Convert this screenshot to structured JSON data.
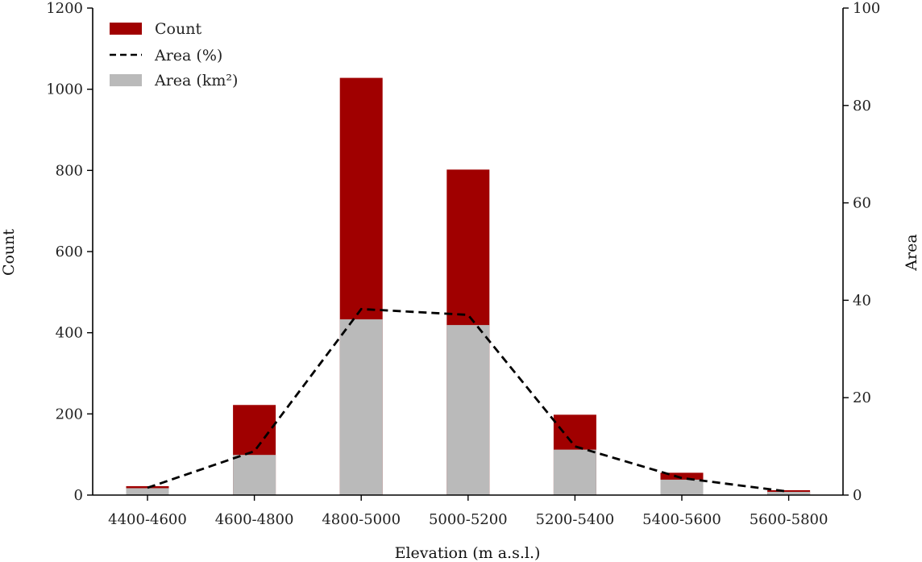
{
  "chart_data": {
    "type": "bar",
    "categories": [
      "4400-4600",
      "4600-4800",
      "4800-5000",
      "5000-5200",
      "5200-5400",
      "5400-5600",
      "5600-5800"
    ],
    "series": [
      {
        "name": "Count",
        "kind": "bar",
        "axis": "left",
        "color": "#a00000",
        "values": [
          22,
          222,
          1028,
          802,
          198,
          55,
          12
        ]
      },
      {
        "name": "Area (km²)",
        "kind": "bar",
        "axis": "left",
        "color": "#bababa",
        "values": [
          17,
          99,
          433,
          419,
          112,
          38,
          8
        ]
      },
      {
        "name": "Area (%)",
        "kind": "line",
        "style": "dashed",
        "axis": "right",
        "color": "#000000",
        "values": [
          1.5,
          9,
          38.2,
          37,
          10,
          3.5,
          0.7
        ]
      }
    ],
    "xlabel": "Elevation (m a.s.l.)",
    "ylabel": "Count",
    "y2label": "Area",
    "ylim": [
      0,
      1200
    ],
    "y2lim": [
      0,
      100
    ],
    "yticks": [
      0,
      200,
      400,
      600,
      800,
      1000,
      1200
    ],
    "y2ticks": [
      0,
      20,
      40,
      60,
      80,
      100
    ],
    "grid": false,
    "legend": {
      "placement": "top-left",
      "entries": [
        {
          "label": "Count",
          "kind": "patch",
          "color": "#a00000"
        },
        {
          "label": "Area (%)",
          "kind": "dashed-line",
          "color": "#000000"
        },
        {
          "label": "Area (km²)",
          "kind": "patch",
          "color": "#bababa"
        }
      ]
    }
  }
}
